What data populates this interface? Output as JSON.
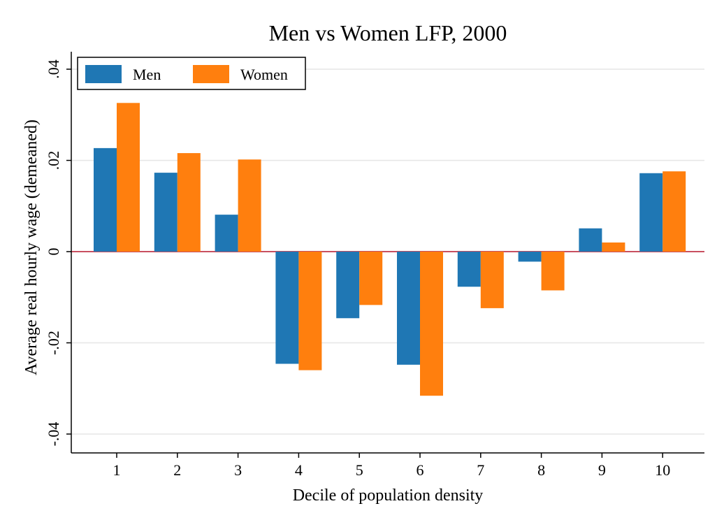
{
  "chart_data": {
    "type": "bar",
    "title": "Men vs Women LFP, 2000",
    "xlabel": "Decile of population density",
    "ylabel": "Average real hourly wage (demeaned)",
    "categories": [
      "1",
      "2",
      "3",
      "4",
      "5",
      "6",
      "7",
      "8",
      "9",
      "10"
    ],
    "ylim": [
      -0.04,
      0.04
    ],
    "yticks": [
      -0.04,
      -0.02,
      0,
      0.02,
      0.04
    ],
    "ytick_labels": [
      "-.04",
      "-.02",
      "0",
      ".02",
      ".04"
    ],
    "grid": true,
    "legend_position": "top-left",
    "series": [
      {
        "name": "Men",
        "color": "#1f77b4",
        "values": [
          0.0227,
          0.0173,
          0.0081,
          -0.0246,
          -0.0146,
          -0.0248,
          -0.0077,
          -0.0022,
          0.0051,
          0.0172
        ]
      },
      {
        "name": "Women",
        "color": "#ff7f0e",
        "values": [
          0.0326,
          0.0216,
          0.0202,
          -0.026,
          -0.0117,
          -0.0316,
          -0.0124,
          -0.0085,
          0.002,
          0.0176
        ]
      }
    ],
    "zero_line_color": "#b5162b"
  }
}
